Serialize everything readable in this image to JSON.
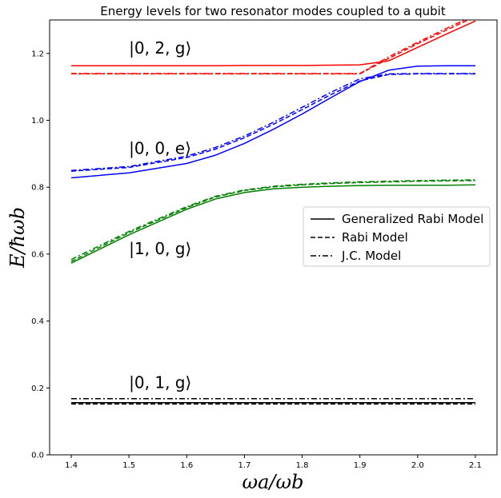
{
  "chart_data": {
    "type": "line",
    "title": "Energy levels for two resonator modes coupled to a qubit",
    "xlabel": "ωa/ωb",
    "ylabel": "E/ħωb",
    "xlim": [
      1.3625,
      2.1375
    ],
    "ylim": [
      0.0,
      1.3
    ],
    "xticks": [
      1.4,
      1.5,
      1.6,
      1.7,
      1.8,
      1.9,
      2.0,
      2.1
    ],
    "xtick_labels": [
      "1.4",
      "1.5",
      "1.6",
      "1.7",
      "1.8",
      "1.9",
      "2.0",
      "2.1"
    ],
    "yticks": [
      0.0,
      0.2,
      0.4,
      0.6,
      0.8,
      1.0,
      1.2
    ],
    "ytick_labels": [
      "0.0",
      "0.2",
      "0.4",
      "0.6",
      "0.8",
      "1.0",
      "1.2"
    ],
    "grid": false,
    "legend": {
      "position": "center-right",
      "entries": [
        {
          "label": "Generalized Rabi Model",
          "dash": "solid"
        },
        {
          "label": "Rabi Model",
          "dash": "dashed"
        },
        {
          "label": "J.C. Model",
          "dash": "dashdot"
        }
      ]
    },
    "annotations": [
      {
        "text": "|0, 2, g⟩",
        "x": 1.5,
        "y": 1.2
      },
      {
        "text": "|0, 0, e⟩",
        "x": 1.5,
        "y": 0.9
      },
      {
        "text": "|1, 0, g⟩",
        "x": 1.5,
        "y": 0.6
      },
      {
        "text": "|0, 1, g⟩",
        "x": 1.5,
        "y": 0.2
      }
    ],
    "x": [
      1.4,
      1.5,
      1.6,
      1.65,
      1.7,
      1.75,
      1.8,
      1.85,
      1.9,
      1.95,
      2.0,
      2.05,
      2.1
    ],
    "series": [
      {
        "name": "Generalized Rabi - level 1",
        "color": "#000000",
        "dash": "solid",
        "values": [
          0.156,
          0.156,
          0.156,
          0.156,
          0.156,
          0.156,
          0.156,
          0.156,
          0.156,
          0.156,
          0.156,
          0.156,
          0.156
        ]
      },
      {
        "name": "Rabi - level 1",
        "color": "#000000",
        "dash": "dashed",
        "values": [
          0.152,
          0.152,
          0.152,
          0.152,
          0.152,
          0.152,
          0.152,
          0.152,
          0.152,
          0.152,
          0.152,
          0.152,
          0.152
        ]
      },
      {
        "name": "J.C. - level 1",
        "color": "#000000",
        "dash": "dashdot",
        "values": [
          0.168,
          0.168,
          0.168,
          0.168,
          0.168,
          0.168,
          0.168,
          0.168,
          0.168,
          0.168,
          0.168,
          0.168,
          0.168
        ]
      },
      {
        "name": "Generalized Rabi - level 2",
        "color": "#008000",
        "dash": "solid",
        "values": [
          0.573,
          0.658,
          0.734,
          0.765,
          0.784,
          0.795,
          0.8,
          0.803,
          0.805,
          0.806,
          0.806,
          0.806,
          0.807
        ]
      },
      {
        "name": "Rabi - level 2",
        "color": "#008000",
        "dash": "dashed",
        "values": [
          0.578,
          0.664,
          0.739,
          0.771,
          0.79,
          0.801,
          0.807,
          0.811,
          0.814,
          0.816,
          0.818,
          0.819,
          0.82
        ]
      },
      {
        "name": "J.C. - level 2",
        "color": "#008000",
        "dash": "dashdot",
        "values": [
          0.584,
          0.668,
          0.742,
          0.773,
          0.792,
          0.803,
          0.809,
          0.813,
          0.816,
          0.818,
          0.82,
          0.821,
          0.822
        ]
      },
      {
        "name": "Generalized Rabi - level 3",
        "color": "#0000ff",
        "dash": "solid",
        "values": [
          0.828,
          0.843,
          0.871,
          0.896,
          0.931,
          0.973,
          1.019,
          1.068,
          1.116,
          1.15,
          1.162,
          1.163,
          1.163
        ]
      },
      {
        "name": "Rabi - level 3",
        "color": "#0000ff",
        "dash": "dashed",
        "values": [
          0.848,
          0.859,
          0.889,
          0.914,
          0.948,
          0.988,
          1.032,
          1.077,
          1.118,
          1.137,
          1.139,
          1.139,
          1.139
        ]
      },
      {
        "name": "J.C. - level 3",
        "color": "#0000ff",
        "dash": "dashdot",
        "values": [
          0.85,
          0.862,
          0.893,
          0.919,
          0.953,
          0.994,
          1.039,
          1.084,
          1.124,
          1.139,
          1.14,
          1.14,
          1.14
        ]
      },
      {
        "name": "Generalized Rabi - level 4",
        "color": "#ff0000",
        "dash": "solid",
        "values": [
          1.163,
          1.163,
          1.163,
          1.163,
          1.164,
          1.164,
          1.164,
          1.165,
          1.166,
          1.178,
          1.218,
          1.258,
          1.297
        ]
      },
      {
        "name": "Rabi - level 4",
        "color": "#ff0000",
        "dash": "dashed",
        "values": [
          1.139,
          1.139,
          1.139,
          1.139,
          1.139,
          1.139,
          1.139,
          1.139,
          1.139,
          1.185,
          1.229,
          1.27,
          1.31
        ]
      },
      {
        "name": "J.C. - level 4",
        "color": "#ff0000",
        "dash": "dashdot",
        "values": [
          1.14,
          1.14,
          1.14,
          1.14,
          1.14,
          1.14,
          1.14,
          1.14,
          1.14,
          1.19,
          1.233,
          1.275,
          1.315
        ]
      }
    ]
  }
}
